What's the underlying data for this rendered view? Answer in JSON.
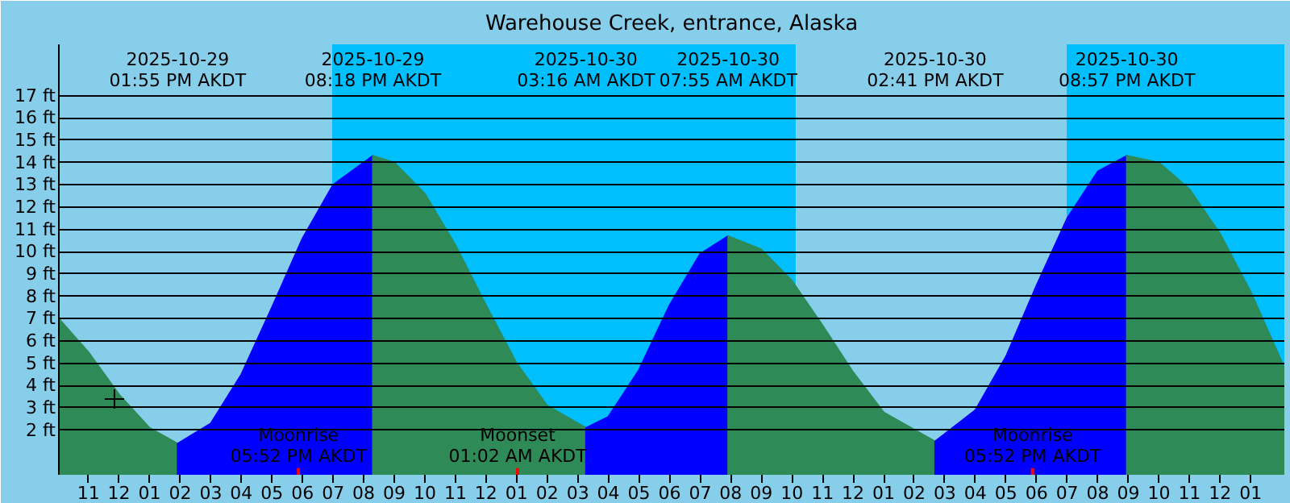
{
  "chart_data": {
    "type": "area",
    "title": "Warehouse Creek, entrance, Alaska",
    "xlim": [
      "2025-10-29T10:02",
      "2025-10-31T02:06"
    ],
    "ylim": [
      0,
      19.3
    ],
    "xticks": [
      {
        "value": "2025-10-29T11:00",
        "label": "11"
      },
      {
        "value": "2025-10-29T12:00",
        "label": "12"
      },
      {
        "value": "2025-10-29T13:00",
        "label": "01"
      },
      {
        "value": "2025-10-29T14:00",
        "label": "02"
      },
      {
        "value": "2025-10-29T15:00",
        "label": "03"
      },
      {
        "value": "2025-10-29T16:00",
        "label": "04"
      },
      {
        "value": "2025-10-29T17:00",
        "label": "05"
      },
      {
        "value": "2025-10-29T18:00",
        "label": "06"
      },
      {
        "value": "2025-10-29T19:00",
        "label": "07"
      },
      {
        "value": "2025-10-29T20:00",
        "label": "08"
      },
      {
        "value": "2025-10-29T21:00",
        "label": "09"
      },
      {
        "value": "2025-10-29T22:00",
        "label": "10"
      },
      {
        "value": "2025-10-29T23:00",
        "label": "11"
      },
      {
        "value": "2025-10-30T00:00",
        "label": "12"
      },
      {
        "value": "2025-10-30T01:00",
        "label": "01"
      },
      {
        "value": "2025-10-30T02:00",
        "label": "02"
      },
      {
        "value": "2025-10-30T03:00",
        "label": "03"
      },
      {
        "value": "2025-10-30T04:00",
        "label": "04"
      },
      {
        "value": "2025-10-30T05:00",
        "label": "05"
      },
      {
        "value": "2025-10-30T06:00",
        "label": "06"
      },
      {
        "value": "2025-10-30T07:00",
        "label": "07"
      },
      {
        "value": "2025-10-30T08:00",
        "label": "08"
      },
      {
        "value": "2025-10-30T09:00",
        "label": "09"
      },
      {
        "value": "2025-10-30T10:00",
        "label": "10"
      },
      {
        "value": "2025-10-30T11:00",
        "label": "11"
      },
      {
        "value": "2025-10-30T12:00",
        "label": "12"
      },
      {
        "value": "2025-10-30T13:00",
        "label": "01"
      },
      {
        "value": "2025-10-30T14:00",
        "label": "02"
      },
      {
        "value": "2025-10-30T15:00",
        "label": "03"
      },
      {
        "value": "2025-10-30T16:00",
        "label": "04"
      },
      {
        "value": "2025-10-30T17:00",
        "label": "05"
      },
      {
        "value": "2025-10-30T18:00",
        "label": "06"
      },
      {
        "value": "2025-10-30T19:00",
        "label": "07"
      },
      {
        "value": "2025-10-30T20:00",
        "label": "08"
      },
      {
        "value": "2025-10-30T21:00",
        "label": "09"
      },
      {
        "value": "2025-10-30T22:00",
        "label": "10"
      },
      {
        "value": "2025-10-30T23:00",
        "label": "11"
      },
      {
        "value": "2025-10-31T00:00",
        "label": "12"
      },
      {
        "value": "2025-10-31T01:00",
        "label": "01"
      }
    ],
    "yticks": [
      {
        "value": 2,
        "label": "2 ft"
      },
      {
        "value": 3,
        "label": "3 ft"
      },
      {
        "value": 4,
        "label": "4 ft"
      },
      {
        "value": 5,
        "label": "5 ft"
      },
      {
        "value": 6,
        "label": "6 ft"
      },
      {
        "value": 7,
        "label": "7 ft"
      },
      {
        "value": 8,
        "label": "8 ft"
      },
      {
        "value": 9,
        "label": "9 ft"
      },
      {
        "value": 10,
        "label": "10 ft"
      },
      {
        "value": 11,
        "label": "11 ft"
      },
      {
        "value": 12,
        "label": "12 ft"
      },
      {
        "value": 13,
        "label": "13 ft"
      },
      {
        "value": 14,
        "label": "14 ft"
      },
      {
        "value": 15,
        "label": "15 ft"
      },
      {
        "value": 16,
        "label": "16 ft"
      },
      {
        "value": 17,
        "label": "17 ft"
      }
    ],
    "grid": "y",
    "series": [
      {
        "color": "#2e8b57",
        "x": [
          "2025-10-29T10:02",
          "2025-10-29T11:00",
          "2025-10-29T12:00",
          "2025-10-29T13:00",
          "2025-10-29T13:55"
        ],
        "values": [
          7.0,
          5.5,
          3.6,
          2.1,
          1.4
        ]
      },
      {
        "color": "#0000ff",
        "x": [
          "2025-10-29T13:55",
          "2025-10-29T15:00",
          "2025-10-29T16:00",
          "2025-10-29T17:00",
          "2025-10-29T18:00",
          "2025-10-29T19:00",
          "2025-10-29T20:18"
        ],
        "values": [
          1.4,
          2.3,
          4.5,
          7.5,
          10.6,
          13.0,
          14.3
        ]
      },
      {
        "color": "#2e8b57",
        "x": [
          "2025-10-29T20:18",
          "2025-10-29T21:00",
          "2025-10-29T22:00",
          "2025-10-29T23:00",
          "2025-10-30T00:00",
          "2025-10-30T01:00",
          "2025-10-30T02:00",
          "2025-10-30T03:16"
        ],
        "values": [
          14.3,
          14.0,
          12.6,
          10.3,
          7.6,
          5.0,
          3.1,
          2.1
        ]
      },
      {
        "color": "#0000ff",
        "x": [
          "2025-10-30T03:16",
          "2025-10-30T04:00",
          "2025-10-30T05:00",
          "2025-10-30T06:00",
          "2025-10-30T07:00",
          "2025-10-30T07:55"
        ],
        "values": [
          2.1,
          2.6,
          4.7,
          7.6,
          9.9,
          10.7
        ]
      },
      {
        "color": "#2e8b57",
        "x": [
          "2025-10-30T07:55",
          "2025-10-30T09:00",
          "2025-10-30T10:00",
          "2025-10-30T11:00",
          "2025-10-30T12:00",
          "2025-10-30T13:00",
          "2025-10-30T14:41"
        ],
        "values": [
          10.7,
          10.1,
          8.7,
          6.7,
          4.6,
          2.8,
          1.5
        ]
      },
      {
        "color": "#0000ff",
        "x": [
          "2025-10-30T14:41",
          "2025-10-30T16:00",
          "2025-10-30T17:00",
          "2025-10-30T18:00",
          "2025-10-30T19:00",
          "2025-10-30T20:00",
          "2025-10-30T20:57"
        ],
        "values": [
          1.5,
          2.9,
          5.3,
          8.5,
          11.5,
          13.6,
          14.3
        ]
      },
      {
        "color": "#2e8b57",
        "x": [
          "2025-10-30T20:57",
          "2025-10-30T22:00",
          "2025-10-30T23:00",
          "2025-10-31T00:00",
          "2025-10-31T01:00",
          "2025-10-31T02:06"
        ],
        "values": [
          14.3,
          14.0,
          12.8,
          10.8,
          8.2,
          4.8
        ]
      },
      {
        "type": "scatter",
        "marker": "cross",
        "color": "#000000",
        "x": [
          "2025-10-29T11:51"
        ],
        "values": [
          3.4
        ]
      }
    ],
    "bands": [
      {
        "axis": "x",
        "from": "2025-10-29T10:02",
        "to": "2025-10-29T18:58",
        "color": "#87ceeb"
      },
      {
        "axis": "x",
        "from": "2025-10-29T18:58",
        "to": "2025-10-30T10:08",
        "color": "#00bfff"
      },
      {
        "axis": "x",
        "from": "2025-10-30T10:08",
        "to": "2025-10-30T18:59",
        "color": "#87ceeb"
      },
      {
        "axis": "x",
        "from": "2025-10-30T18:59",
        "to": "2025-10-31T02:06",
        "color": "#00bfff"
      }
    ],
    "ref_lines": [
      {
        "axis": "x",
        "value": "2025-10-29T17:52",
        "label": "Moonrise\n05:52 PM AKDT",
        "color": "#ff0000"
      },
      {
        "axis": "x",
        "value": "2025-10-30T01:02",
        "label": "Moonset\n01:02 AM AKDT",
        "color": "#ff0000"
      },
      {
        "axis": "x",
        "value": "2025-10-30T17:52",
        "label": "Moonrise\n05:52 PM AKDT",
        "color": "#ff0000"
      }
    ],
    "annotations": [
      "2025-10-29\n01:55 PM AKDT",
      "2025-10-29\n08:18 PM AKDT",
      "2025-10-30\n03:16 AM AKDT",
      "2025-10-30\n07:55 AM AKDT",
      "2025-10-30\n02:41 PM AKDT",
      "2025-10-30\n08:57 PM AKDT"
    ]
  }
}
